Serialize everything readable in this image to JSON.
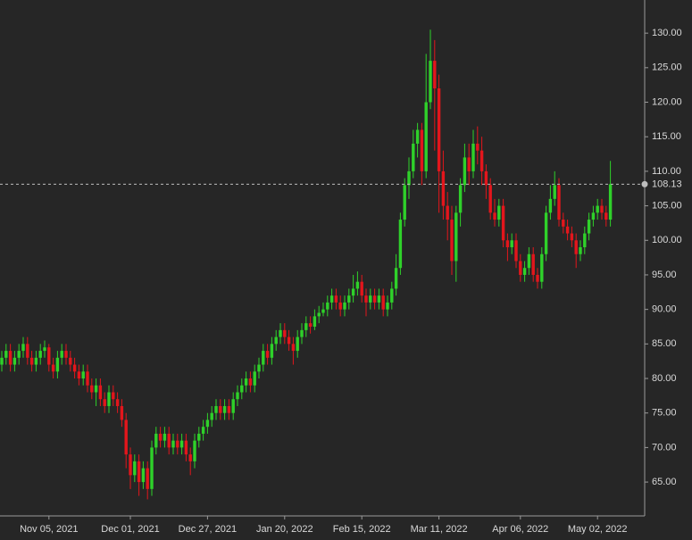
{
  "chart_data": {
    "type": "candlestick",
    "up_color": "#2fd12a",
    "down_color": "#e3161c",
    "ylim": [
      60.1,
      134.8
    ],
    "yticks": [
      {
        "value": 65,
        "label": "65.00"
      },
      {
        "value": 70,
        "label": "70.00"
      },
      {
        "value": 75,
        "label": "75.00"
      },
      {
        "value": 80,
        "label": "80.00"
      },
      {
        "value": 85,
        "label": "85.00"
      },
      {
        "value": 90,
        "label": "90.00"
      },
      {
        "value": 95,
        "label": "95.00"
      },
      {
        "value": 100,
        "label": "100.00"
      },
      {
        "value": 105,
        "label": "105.00"
      },
      {
        "value": 110,
        "label": "110.00"
      },
      {
        "value": 115,
        "label": "115.00"
      },
      {
        "value": 120,
        "label": "120.00"
      },
      {
        "value": 125,
        "label": "125.00"
      },
      {
        "value": 130,
        "label": "130.00"
      }
    ],
    "last_price": 108.13,
    "categories": [
      null,
      null,
      null,
      null,
      null,
      null,
      null,
      null,
      null,
      null,
      null,
      "Nov 05, 2021",
      null,
      null,
      null,
      null,
      null,
      null,
      null,
      null,
      null,
      null,
      null,
      null,
      null,
      null,
      null,
      null,
      null,
      null,
      "Dec 01, 2021",
      null,
      null,
      null,
      null,
      null,
      null,
      null,
      null,
      null,
      null,
      null,
      null,
      null,
      null,
      null,
      null,
      null,
      "Dec 27, 2021",
      null,
      null,
      null,
      null,
      null,
      null,
      null,
      null,
      null,
      null,
      null,
      null,
      null,
      null,
      null,
      null,
      null,
      "Jan 20, 2022",
      null,
      null,
      null,
      null,
      null,
      null,
      null,
      null,
      null,
      null,
      null,
      null,
      null,
      null,
      null,
      null,
      null,
      "Feb 15, 2022",
      null,
      null,
      null,
      null,
      null,
      null,
      null,
      null,
      null,
      null,
      null,
      null,
      null,
      null,
      null,
      null,
      null,
      "Mar 11, 2022",
      null,
      null,
      null,
      null,
      null,
      null,
      null,
      null,
      null,
      null,
      null,
      null,
      null,
      null,
      null,
      null,
      null,
      null,
      "Apr 06, 2022",
      null,
      null,
      null,
      null,
      null,
      null,
      null,
      null,
      null,
      null,
      null,
      null,
      null,
      null,
      null,
      null,
      null,
      "May 02, 2022",
      null,
      null,
      null
    ],
    "open": [
      82,
      83,
      84,
      82,
      83,
      84,
      85,
      83,
      82,
      83,
      84,
      84.5,
      82,
      81,
      83,
      84,
      83,
      82,
      81,
      80,
      81,
      79,
      78,
      79,
      77,
      76,
      78,
      77,
      76,
      74,
      69,
      66,
      68,
      65,
      67,
      64,
      70,
      72,
      71,
      72,
      70,
      71,
      70,
      71,
      69,
      68,
      71,
      72,
      73,
      74,
      75,
      76,
      75,
      76,
      75,
      77,
      78,
      79,
      80,
      79,
      81,
      82,
      84,
      83,
      85,
      86,
      87,
      86,
      85,
      84,
      86,
      87,
      88,
      87.5,
      89,
      89.5,
      90,
      91,
      92,
      91,
      90,
      91,
      92,
      93,
      94,
      92,
      91,
      92,
      91,
      92,
      90,
      91,
      93,
      96,
      103,
      108,
      110,
      114,
      116,
      110,
      120,
      126,
      122,
      110,
      105,
      103,
      97,
      104,
      108,
      112,
      110,
      114,
      113,
      110,
      108,
      104,
      103,
      105,
      100,
      99,
      100,
      97,
      95,
      96,
      98,
      95,
      94,
      98,
      104,
      106,
      108,
      103,
      102,
      101,
      100,
      98,
      99,
      101,
      103,
      104,
      105,
      104,
      103
    ],
    "high": [
      84,
      85,
      85,
      84,
      85,
      86,
      86,
      84,
      84,
      85,
      85.5,
      85,
      83,
      84,
      85,
      85,
      84,
      83,
      82,
      82,
      82,
      80,
      80,
      80,
      78,
      79,
      79,
      78,
      77,
      75,
      70,
      69,
      69,
      68,
      68,
      71,
      73,
      73,
      73,
      73,
      72,
      72,
      72,
      72,
      70,
      72,
      73,
      74,
      75,
      76,
      77,
      77,
      77,
      77,
      78,
      79,
      80,
      81,
      81,
      82,
      83,
      85,
      85,
      86,
      87,
      88,
      88,
      87,
      86,
      87,
      88,
      89,
      89,
      90,
      90.5,
      91,
      92,
      93,
      93,
      92,
      92,
      93,
      95,
      95.5,
      95,
      93,
      93,
      93,
      93,
      93,
      92,
      94,
      98,
      104,
      109,
      112,
      116,
      117,
      117,
      127,
      130.5,
      129,
      124,
      113,
      107,
      105,
      105,
      109,
      114,
      114,
      116,
      116.5,
      115,
      111,
      109,
      106,
      106,
      106,
      101,
      101,
      101,
      98,
      97,
      99,
      99,
      96,
      99,
      105,
      108,
      110,
      109,
      104,
      103,
      102,
      101,
      100,
      102,
      104,
      105,
      106,
      106,
      105,
      111.5
    ],
    "low": [
      81,
      82,
      81,
      81,
      82,
      83,
      82,
      81,
      81,
      82,
      83,
      81,
      80,
      80,
      82,
      82,
      81,
      80,
      79,
      79,
      78,
      77,
      76,
      76,
      75,
      75,
      76,
      75,
      73,
      67,
      64,
      65,
      63,
      64,
      62.5,
      63,
      69,
      70,
      70,
      69,
      69,
      69,
      69,
      68,
      66,
      67,
      70,
      71,
      72,
      73,
      74,
      74,
      74,
      74,
      74,
      76,
      77,
      78,
      78,
      78,
      80,
      81,
      82,
      82,
      84,
      85,
      85,
      84,
      82,
      83,
      85,
      86,
      86.5,
      87,
      88,
      89,
      89,
      90,
      90,
      89,
      89,
      90,
      91,
      92,
      91,
      89,
      90,
      90,
      90,
      89,
      89,
      90,
      92,
      95,
      102,
      106,
      109,
      112,
      108,
      109,
      119,
      113,
      104,
      103,
      100,
      95,
      94,
      102,
      107,
      108,
      109,
      111,
      108,
      106,
      103,
      102,
      102,
      99,
      97,
      98,
      96,
      94,
      94,
      95,
      94,
      93,
      93,
      97,
      103,
      105,
      102,
      101,
      100,
      99,
      96,
      97,
      98,
      100,
      102,
      103,
      103,
      102,
      102
    ],
    "close": [
      83,
      84,
      82,
      83,
      84,
      85,
      83,
      82,
      83,
      84,
      84.5,
      82,
      81,
      83,
      84,
      83,
      82,
      81,
      80,
      81,
      79,
      78,
      79,
      77,
      76,
      78,
      77,
      76,
      74,
      69,
      66,
      68,
      65,
      67,
      64,
      70,
      72,
      71,
      72,
      70,
      71,
      70,
      71,
      69,
      68,
      71,
      72,
      73,
      74,
      75,
      76,
      75,
      76,
      75,
      77,
      78,
      79,
      80,
      79,
      81,
      82,
      84,
      83,
      85,
      86,
      87,
      86,
      85,
      84,
      86,
      87,
      88,
      87.5,
      89,
      89.5,
      90,
      91,
      92,
      91,
      90,
      91,
      92,
      93,
      94,
      92,
      91,
      92,
      91,
      92,
      90,
      91,
      93,
      96,
      103,
      108,
      110,
      114,
      116,
      110,
      120,
      126,
      122,
      110,
      105,
      103,
      97,
      104,
      108,
      112,
      110,
      114,
      113,
      110,
      108,
      104,
      103,
      105,
      100,
      99,
      100,
      97,
      95,
      96,
      98,
      95,
      94,
      98,
      104,
      106,
      108,
      103,
      102,
      101,
      100,
      98,
      99,
      101,
      103,
      104,
      105,
      104,
      103,
      108.13
    ]
  }
}
